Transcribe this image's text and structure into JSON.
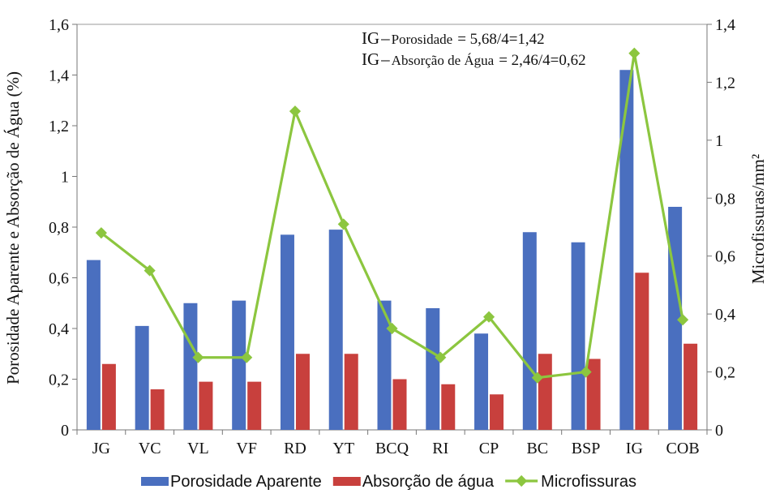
{
  "chart_data": {
    "type": "bar",
    "categories": [
      "JG",
      "VC",
      "VL",
      "VF",
      "RD",
      "YT",
      "BCQ",
      "RI",
      "CP",
      "BC",
      "BSP",
      "IG",
      "COB"
    ],
    "series": [
      {
        "name": "Porosidade Aparente",
        "type": "bar",
        "axis": "left",
        "color": "#4a6fbf",
        "values": [
          0.67,
          0.41,
          0.5,
          0.51,
          0.77,
          0.79,
          0.51,
          0.48,
          0.38,
          0.78,
          0.74,
          1.42,
          0.88
        ]
      },
      {
        "name": "Absorção de água",
        "type": "bar",
        "axis": "left",
        "color": "#c8403d",
        "values": [
          0.26,
          0.16,
          0.19,
          0.19,
          0.3,
          0.3,
          0.2,
          0.18,
          0.14,
          0.3,
          0.28,
          0.62,
          0.34
        ]
      },
      {
        "name": "Microfissuras",
        "type": "line",
        "axis": "right",
        "color": "#8cc63f",
        "values": [
          0.68,
          0.55,
          0.25,
          0.25,
          1.1,
          0.71,
          0.35,
          0.25,
          0.39,
          0.18,
          0.2,
          1.3,
          0.38
        ]
      }
    ],
    "ylabel": "Porosidade Aparente e Absorção de Água (%)",
    "y2label": "Microfissuras/mm²",
    "ylim": [
      0,
      1.6
    ],
    "y2lim": [
      0,
      1.4
    ],
    "yticks": [
      "0",
      "0,2",
      "0,4",
      "0,6",
      "0,8",
      "1",
      "1,2",
      "1,4",
      "1,6"
    ],
    "y2ticks": [
      "0",
      "0,2",
      "0,4",
      "0,6",
      "0,8",
      "1",
      "1,2",
      "1,4"
    ],
    "annotations": [
      {
        "prefix": "IG",
        "label": "Porosidade",
        "value": "= 5,68/4=1,42"
      },
      {
        "prefix": "IG",
        "label": "Absorção de Água",
        "value": "= 2,46/4=0,62"
      }
    ],
    "legend_position": "bottom",
    "grid": false
  }
}
